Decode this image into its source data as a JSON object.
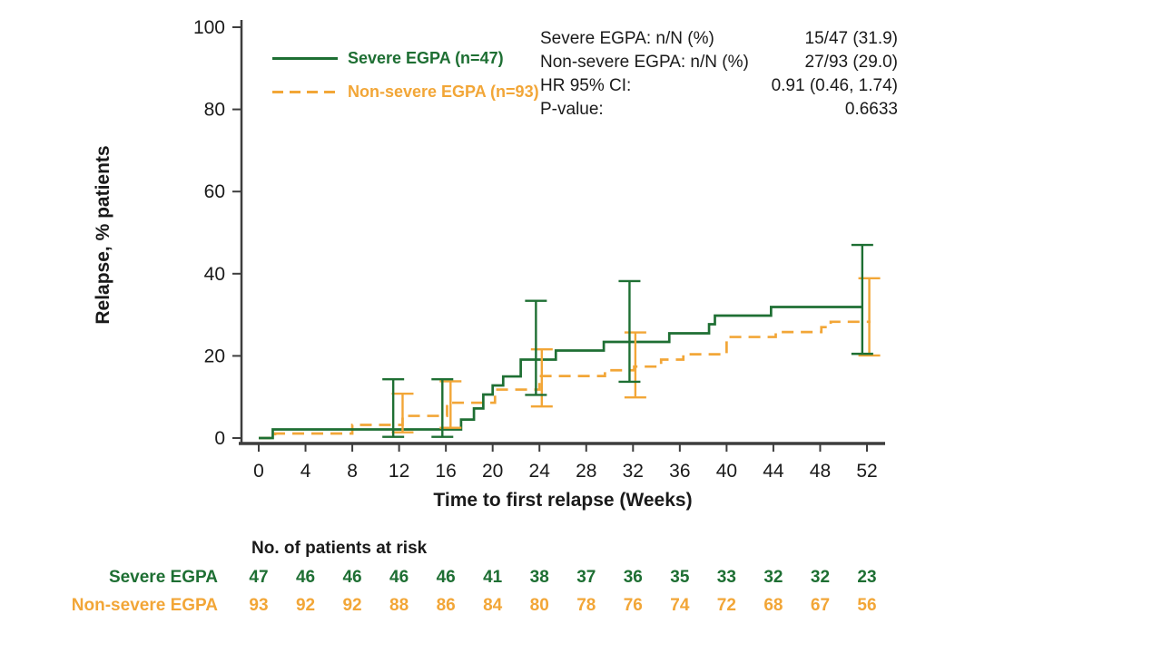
{
  "chart_data": {
    "type": "line",
    "subtype": "kaplan-meier-step",
    "title": "",
    "xlabel": "Time to first relapse (Weeks)",
    "ylabel": "Relapse, % patients",
    "xlim": [
      0,
      52
    ],
    "ylim": [
      0,
      100
    ],
    "xticks": [
      0,
      4,
      8,
      12,
      16,
      20,
      24,
      28,
      32,
      36,
      40,
      44,
      48,
      52
    ],
    "yticks": [
      0,
      20,
      40,
      60,
      80,
      100
    ],
    "grid": "off",
    "legend_position": "top-left-inside",
    "axis_color": "#3d3d3d",
    "text_color": "#1a1a1a",
    "series": [
      {
        "name": "Non-severe EGPA (n=93)",
        "color": "#f2a637",
        "style": "dashed",
        "steps": [
          [
            0,
            0
          ],
          [
            1.4,
            1.1
          ],
          [
            8.0,
            3.2
          ],
          [
            12.3,
            5.4
          ],
          [
            16.1,
            8.6
          ],
          [
            20.2,
            11.8
          ],
          [
            24.0,
            15.1
          ],
          [
            29.6,
            16.5
          ],
          [
            32.1,
            17.4
          ],
          [
            34.4,
            19.1
          ],
          [
            36.3,
            20.4
          ],
          [
            40.0,
            24.6
          ],
          [
            44.2,
            25.8
          ],
          [
            48.1,
            27.0
          ],
          [
            48.9,
            28.3
          ],
          [
            52.3,
            28.3
          ]
        ],
        "error_bars": [
          {
            "x": 12.3,
            "low": 1.4,
            "high": 10.8
          },
          {
            "x": 16.4,
            "low": 2.5,
            "high": 13.8
          },
          {
            "x": 24.2,
            "low": 7.7,
            "high": 21.6
          },
          {
            "x": 32.2,
            "low": 9.9,
            "high": 25.7
          },
          {
            "x": 52.2,
            "low": 20.1,
            "high": 38.9
          }
        ]
      },
      {
        "name": "Severe EGPA (n=47)",
        "color": "#1e6f33",
        "style": "solid",
        "steps": [
          [
            0,
            0
          ],
          [
            1.2,
            2.1
          ],
          [
            17.3,
            4.5
          ],
          [
            18.4,
            7.2
          ],
          [
            19.2,
            10.6
          ],
          [
            20.0,
            12.8
          ],
          [
            20.9,
            15.0
          ],
          [
            22.4,
            19.1
          ],
          [
            25.4,
            21.3
          ],
          [
            29.5,
            23.4
          ],
          [
            35.1,
            25.5
          ],
          [
            38.5,
            27.7
          ],
          [
            39.0,
            29.8
          ],
          [
            43.8,
            31.9
          ],
          [
            51.6,
            31.9
          ]
        ],
        "error_bars": [
          {
            "x": 11.5,
            "low": 0.3,
            "high": 14.3
          },
          {
            "x": 15.7,
            "low": 0.3,
            "high": 14.3
          },
          {
            "x": 23.7,
            "low": 10.5,
            "high": 33.4
          },
          {
            "x": 31.7,
            "low": 13.7,
            "high": 38.2
          },
          {
            "x": 51.6,
            "low": 20.5,
            "high": 47.0
          }
        ]
      }
    ]
  },
  "legend": {
    "items": [
      {
        "label": "Severe EGPA (n=47)",
        "color": "#1e6f33",
        "style": "solid"
      },
      {
        "label": "Non-severe EGPA (n=93)",
        "color": "#f2a637",
        "style": "dashed"
      }
    ]
  },
  "stats": {
    "rows": [
      {
        "label": "Severe EGPA: n/N (%)",
        "value": "15/47 (31.9)"
      },
      {
        "label": "Non-severe  EGPA: n/N (%)",
        "value": "27/93 (29.0)"
      },
      {
        "label": "HR 95% CI:",
        "value": "0.91 (0.46, 1.74)"
      },
      {
        "label": "P-value:",
        "value": "0.6633"
      }
    ]
  },
  "risk_table": {
    "title": "No. of patients at risk",
    "weeks": [
      0,
      4,
      8,
      12,
      16,
      20,
      24,
      28,
      32,
      36,
      40,
      44,
      48,
      52
    ],
    "rows": [
      {
        "label": "Severe EGPA",
        "color": "#1e6f33",
        "values": [
          "47",
          "46",
          "46",
          "46",
          "46",
          "41",
          "38",
          "37",
          "36",
          "35",
          "33",
          "32",
          "32",
          "23"
        ]
      },
      {
        "label": "Non-severe EGPA",
        "color": "#f2a637",
        "values": [
          "93",
          "92",
          "92",
          "88",
          "86",
          "84",
          "80",
          "78",
          "76",
          "74",
          "72",
          "68",
          "67",
          "56"
        ]
      }
    ]
  }
}
